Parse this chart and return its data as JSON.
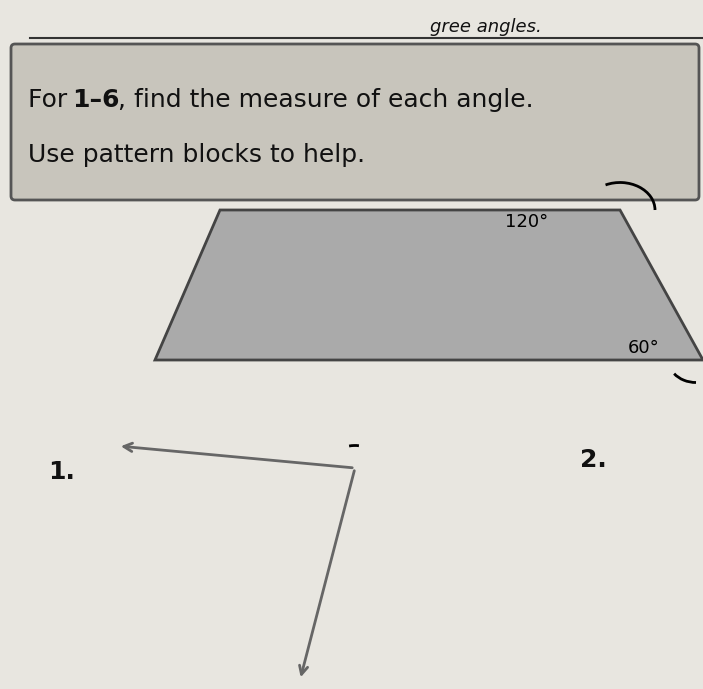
{
  "bg_color": "#d4d0c8",
  "page_color": "#e8e6e0",
  "header_box_color": "#c8c5bc",
  "header_border_color": "#555555",
  "top_text": "gree angles.",
  "header_line1_pre": "For ",
  "header_line1_bold": "1–6",
  "header_line1_post": ", find the measure of each angle.",
  "header_line2": "Use pattern blocks to help.",
  "trap_color": "#aaaaaa",
  "trap_edge_color": "#444444",
  "angle_120_label": "120°",
  "angle_60_label": "60°",
  "label_1": "1.",
  "label_2": "2.",
  "line_color": "#777777",
  "arrow_color": "#666666",
  "label_color": "#111111"
}
